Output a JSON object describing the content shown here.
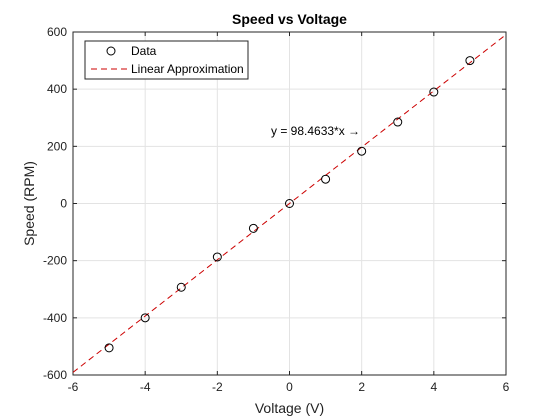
{
  "chart_data": {
    "type": "scatter",
    "title": "Speed vs Voltage",
    "xlabel": "Voltage (V)",
    "ylabel": "Speed (RPM)",
    "xlim": [
      -6,
      6
    ],
    "ylim": [
      -600,
      600
    ],
    "xticks": [
      -6,
      -4,
      -2,
      0,
      2,
      4,
      6
    ],
    "yticks": [
      -600,
      -400,
      -200,
      0,
      200,
      400,
      600
    ],
    "xtick_labels": [
      "-6",
      "-4",
      "-2",
      "0",
      "2",
      "4",
      "6"
    ],
    "ytick_labels": [
      "-600",
      "-400",
      "-200",
      "0",
      "200",
      "400",
      "600"
    ],
    "grid": true,
    "legend_position": "top-left",
    "series": [
      {
        "name": "Data",
        "style": "markers",
        "marker": "circle-open",
        "color": "#000000",
        "x": [
          -5,
          -4,
          -3,
          -2,
          -1,
          0,
          1,
          2,
          3,
          4,
          5
        ],
        "y": [
          -505,
          -400,
          -293,
          -187,
          -87,
          0,
          85,
          183,
          285,
          390,
          500
        ]
      },
      {
        "name": "Linear Approximation",
        "style": "dashed-line",
        "color": "#cc0000",
        "slope": 98.4633,
        "x": [
          -6,
          6
        ]
      }
    ],
    "annotation": {
      "text": "y = 98.4633*x →",
      "x": 2,
      "y": 240
    }
  }
}
